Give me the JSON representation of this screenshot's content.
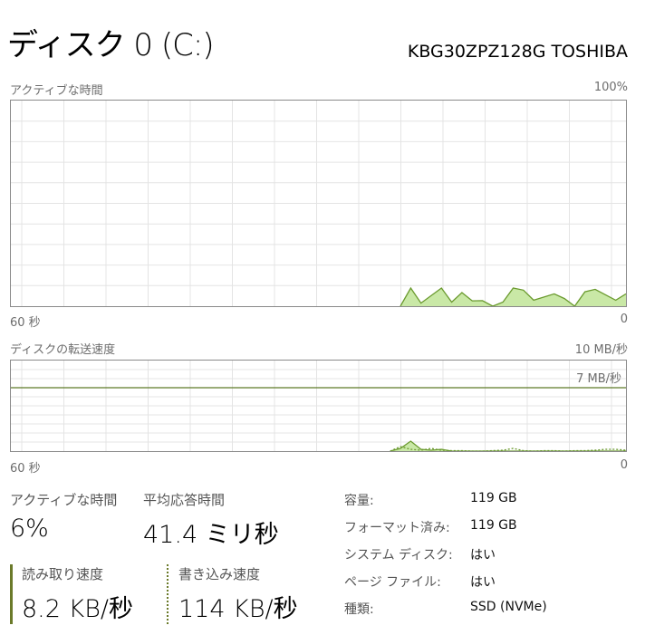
{
  "header": {
    "title": "ディスク 0 (C:)",
    "model": "KBG30ZPZ128G TOSHIBA"
  },
  "colors": {
    "line": "#6a9a2e",
    "fill": "#c9e8a6",
    "grid": "#e4e4e4",
    "border": "#8a8a8a",
    "marker_line": "#5e7a27"
  },
  "chart_data": [
    {
      "type": "area",
      "label": "アクティブな時間",
      "ymax_label": "100%",
      "xleft_label": "60 秒",
      "xright_label": "0",
      "xlim": [
        60,
        0
      ],
      "ylim": [
        0,
        100
      ],
      "grid": true,
      "series": [
        {
          "x": [
            22,
            21,
            20,
            18,
            17,
            16,
            15,
            14,
            13,
            12,
            11,
            10,
            9,
            7,
            6,
            5,
            4,
            3,
            1,
            0
          ],
          "y": [
            0,
            8.8,
            1.5,
            8.8,
            2,
            6.6,
            2.6,
            2.7,
            0,
            2,
            8.8,
            7.8,
            2.9,
            6,
            3.7,
            0,
            7,
            8.2,
            2.9,
            6
          ]
        }
      ]
    },
    {
      "type": "area",
      "label": "ディスクの転送速度",
      "ymax_label": "10 MB/秒",
      "marker_label": "7 MB/秒",
      "marker_value": 7,
      "xleft_label": "60 秒",
      "xright_label": "0",
      "xlim": [
        60,
        0
      ],
      "ylim": [
        0,
        10
      ],
      "grid": true,
      "series": [
        {
          "name": "読み取り速度",
          "style": "solid",
          "x": [
            23,
            22,
            21,
            20,
            19,
            18,
            17,
            16,
            15,
            14,
            13,
            12,
            11,
            10,
            9,
            8,
            7,
            6,
            5,
            4,
            3,
            2,
            1,
            0
          ],
          "y": [
            0,
            0.3,
            1.1,
            0.2,
            0.1,
            0.2,
            0,
            0,
            0,
            0,
            0,
            0,
            0,
            0,
            0,
            0,
            0,
            0,
            0,
            0,
            0,
            0,
            0,
            0
          ]
        },
        {
          "name": "書き込み速度",
          "style": "dashed",
          "x": [
            23,
            22,
            21,
            20,
            19,
            18,
            17,
            16,
            15,
            14,
            13,
            12,
            11,
            10,
            9,
            8,
            7,
            6,
            5,
            4,
            3,
            2,
            1,
            0
          ],
          "y": [
            0,
            0.5,
            0.2,
            0.1,
            0.3,
            0.1,
            0.05,
            0.05,
            0,
            0,
            0.05,
            0.1,
            0.3,
            0.05,
            0,
            0.05,
            0.05,
            0,
            0.05,
            0.05,
            0.1,
            0.2,
            0.2,
            0.1
          ]
        }
      ]
    }
  ],
  "stats": {
    "active_label": "アクティブな時間",
    "active_value": "6%",
    "response_label": "平均応答時間",
    "response_value": "41.4 ミリ秒",
    "read_label": "読み取り速度",
    "read_value": "8.2 KB/秒",
    "write_label": "書き込み速度",
    "write_value": "114 KB/秒"
  },
  "info": [
    {
      "label": "容量:",
      "value": "119 GB"
    },
    {
      "label": "フォーマット済み:",
      "value": "119 GB"
    },
    {
      "label": "システム ディスク:",
      "value": "はい"
    },
    {
      "label": "ページ ファイル:",
      "value": "はい"
    },
    {
      "label": "種類:",
      "value": "SSD (NVMe)"
    }
  ]
}
